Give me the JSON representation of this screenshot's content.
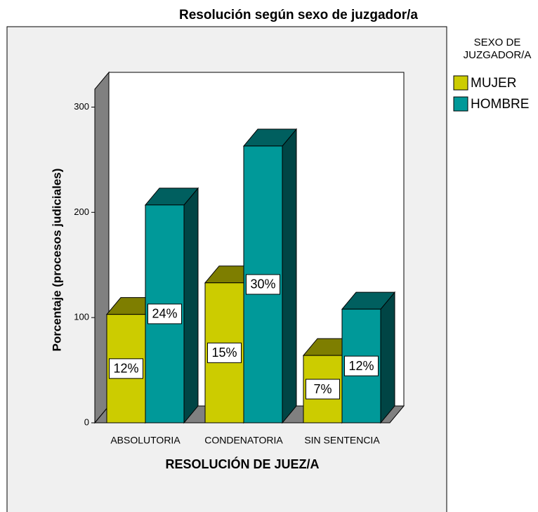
{
  "chart_data": {
    "type": "bar3d",
    "title": "Resolución según sexo de juzgador/a",
    "x_label": "RESOLUCIÓN DE JUEZ/A",
    "y_label": "Porcentaje (procesos judiciales)",
    "categories": [
      "ABSOLUTORIA",
      "CONDENATORIA",
      "SIN SENTENCIA"
    ],
    "legend_title": [
      "SEXO DE",
      "JUZGADOR/A"
    ],
    "series": [
      {
        "name": "MUJER",
        "color": "#cccc00",
        "values": [
          103,
          133,
          64
        ],
        "share_labels": [
          "12%",
          "15%",
          "7%"
        ]
      },
      {
        "name": "HOMBRE",
        "color": "#009999",
        "values": [
          207,
          263,
          108
        ],
        "share_labels": [
          "24%",
          "30%",
          "12%"
        ]
      }
    ],
    "ylim": [
      0,
      317
    ],
    "yticks": [
      0,
      100,
      200,
      300
    ]
  }
}
